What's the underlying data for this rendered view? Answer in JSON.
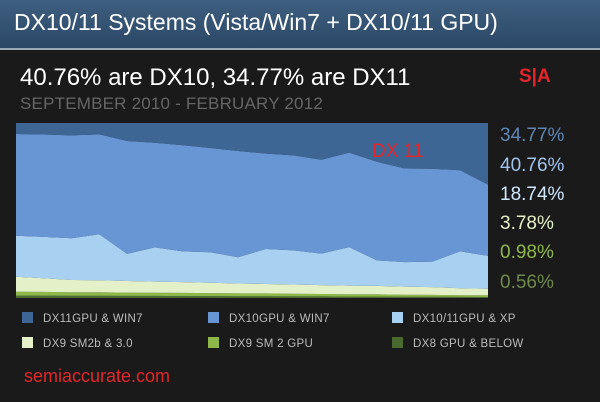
{
  "header": {
    "title": "DX10/11 Systems (Vista/Win7 + DX10/11 GPU)"
  },
  "headline": "40.76% are DX10, 34.77% are DX11",
  "subtitle": "SEPTEMBER 2010 - FEBRUARY 2012",
  "logo": "S|A",
  "annotation": "DX 11",
  "source": "semiaccurate.com",
  "chart_data": {
    "type": "area",
    "stacked": true,
    "normalized": true,
    "x_range": [
      "September 2010",
      "February 2012"
    ],
    "x": [
      0,
      1,
      2,
      3,
      4,
      5,
      6,
      7,
      8,
      9,
      10,
      11,
      12,
      13,
      14,
      15,
      16,
      17
    ],
    "ylim": [
      0,
      100
    ],
    "legend_position": "bottom",
    "series": [
      {
        "name": "DX8 GPU & BELOW",
        "color": "#4a6a30",
        "final_pct": "0.56%",
        "label_color": "#6f8a4a",
        "values": [
          1.4,
          1.4,
          1.3,
          1.3,
          1.2,
          1.2,
          1.1,
          1.1,
          1.0,
          1.0,
          0.9,
          0.9,
          0.8,
          0.8,
          0.7,
          0.7,
          0.6,
          0.56
        ]
      },
      {
        "name": "DX9 SM 2 GPU",
        "color": "#8fb84a",
        "final_pct": "0.98%",
        "label_color": "#8fb84a",
        "values": [
          2.2,
          2.1,
          2.0,
          2.0,
          1.9,
          1.8,
          1.8,
          1.7,
          1.6,
          1.6,
          1.5,
          1.4,
          1.3,
          1.3,
          1.2,
          1.1,
          1.0,
          0.98
        ]
      },
      {
        "name": "DX9 SM2b & 3.0",
        "color": "#e4f0c8",
        "final_pct": "3.78%",
        "label_color": "#e4f0c8",
        "values": [
          8.5,
          7.8,
          7.0,
          6.8,
          6.6,
          6.4,
          6.2,
          5.9,
          5.7,
          5.4,
          5.3,
          5.1,
          5.0,
          4.8,
          4.6,
          4.4,
          4.0,
          3.78
        ]
      },
      {
        "name": "DX10/11GPU & XP",
        "color": "#a8d0f0",
        "final_pct": "18.74%",
        "label_color": "#d0e8ff",
        "values": [
          23.5,
          23.6,
          23.8,
          26.3,
          15.5,
          19.5,
          17.5,
          17.5,
          15.0,
          20.0,
          19.5,
          18.0,
          22.0,
          14.6,
          14.0,
          14.6,
          21.1,
          18.74
        ]
      },
      {
        "name": "DX10GPU & WIN7",
        "color": "#6896d4",
        "final_pct": "40.76%",
        "label_color": "#a0c4f0",
        "values": [
          58.1,
          58.5,
          58.8,
          57.1,
          64.5,
          59.8,
          60.7,
          59.5,
          60.7,
          54.5,
          54.3,
          53.6,
          54.0,
          56.3,
          53.5,
          53.0,
          46.3,
          40.76
        ]
      },
      {
        "name": "DX11GPU & WIN7",
        "color": "#3e6694",
        "final_pct": "34.77%",
        "label_color": "#5f86b6",
        "values": [
          6.3,
          8.6,
          9.1,
          6.5,
          10.3,
          11.3,
          12.7,
          14.3,
          16.0,
          17.5,
          18.5,
          21.0,
          16.9,
          22.2,
          26.0,
          26.2,
          27.0,
          34.77
        ]
      }
    ]
  }
}
